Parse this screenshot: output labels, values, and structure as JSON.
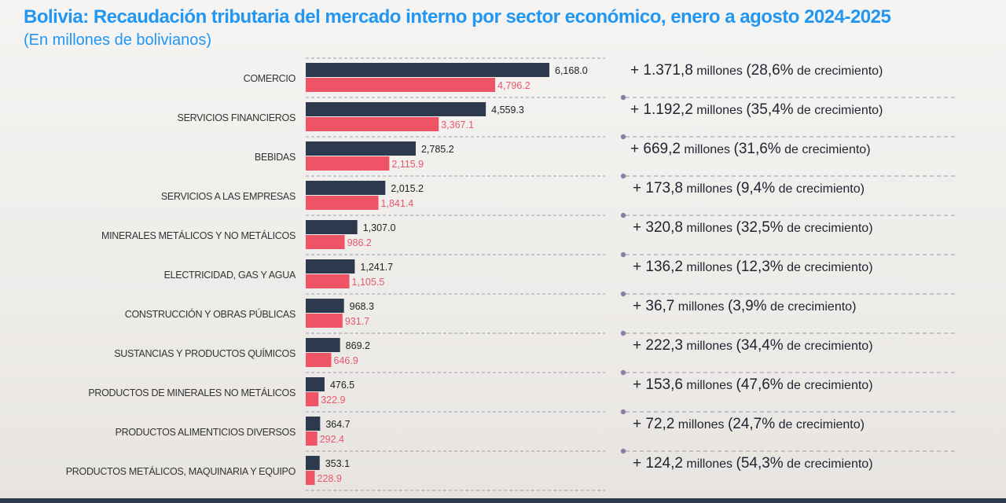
{
  "header": {
    "title": "Bolivia: Recaudación tributaria del mercado interno por sector económico, enero a agosto 2024-2025",
    "subtitle": "(En millones de bolivianos)"
  },
  "colors": {
    "series_2025": "#2d3a4d",
    "series_2024": "#ef5366",
    "label_2024": "#e9566b",
    "title": "#2196f3",
    "divider": "#8a8aa6",
    "dot": "#8a7fa8"
  },
  "chart_data": {
    "type": "bar",
    "orientation": "horizontal",
    "categories": [
      "COMERCIO",
      "SERVICIOS FINANCIEROS",
      "BEBIDAS",
      "SERVICIOS A LAS EMPRESAS",
      "MINERALES METÁLICOS Y NO METÁLICOS",
      "ELECTRICIDAD, GAS Y AGUA",
      "CONSTRUCCIÓN Y OBRAS PÚBLICAS",
      "SUSTANCIAS Y PRODUCTOS QUÍMICOS",
      "PRODUCTOS DE MINERALES NO METÁLICOS",
      "PRODUCTOS ALIMENTICIOS DIVERSOS",
      "PRODUCTOS METÁLICOS, MAQUINARIA Y EQUIPO"
    ],
    "series": [
      {
        "color": "#2d3a4d",
        "values": [
          6168.0,
          4559.3,
          2785.2,
          2015.2,
          1307.0,
          1241.7,
          968.3,
          869.2,
          476.5,
          364.7,
          353.1
        ],
        "labels": [
          "6,168.0",
          "4,559.3",
          "2,785.2",
          "2,015.2",
          "1,307.0",
          "1,241.7",
          "968.3",
          "869.2",
          "476.5",
          "364.7",
          "353.1"
        ]
      },
      {
        "color": "#ef5366",
        "values": [
          4796.2,
          3367.1,
          2115.9,
          1841.4,
          986.2,
          1105.5,
          931.7,
          646.9,
          322.9,
          292.4,
          228.9
        ],
        "labels": [
          "4,796.2",
          "3,367.1",
          "2,115.9",
          "1,841.4",
          "986.2",
          "1,105.5",
          "931.7",
          "646.9",
          "322.9",
          "292.4",
          "228.9"
        ]
      }
    ],
    "xlim": [
      0,
      6168.0
    ],
    "legend": "none",
    "grid": false
  },
  "growth": [
    {
      "amount": "+ 1.371,8",
      "unit": "millones",
      "pct": "(28,6%",
      "suffix": "de crecimiento)"
    },
    {
      "amount": "+ 1.192,2",
      "unit": "millones",
      "pct": "(35,4%",
      "suffix": "de crecimiento)"
    },
    {
      "amount": "+ 669,2",
      "unit": "millones",
      "pct": "(31,6%",
      "suffix": "de crecimiento)"
    },
    {
      "amount": "+ 173,8",
      "unit": "millones",
      "pct": "(9,4%",
      "suffix": "de crecimiento)"
    },
    {
      "amount": "+ 320,8",
      "unit": "millones",
      "pct": "(32,5%",
      "suffix": "de crecimiento)"
    },
    {
      "amount": "+ 136,2",
      "unit": "millones",
      "pct": "(12,3%",
      "suffix": "de crecimiento)"
    },
    {
      "amount": "+ 36,7",
      "unit": "millones",
      "pct": "(3,9%",
      "suffix": "de crecimiento)"
    },
    {
      "amount": "+ 222,3",
      "unit": "millones",
      "pct": "(34,4%",
      "suffix": "de crecimiento)"
    },
    {
      "amount": "+ 153,6",
      "unit": "millones",
      "pct": "(47,6%",
      "suffix": "de crecimiento)"
    },
    {
      "amount": "+ 72,2",
      "unit": "millones",
      "pct": "(24,7%",
      "suffix": "de crecimiento)"
    },
    {
      "amount": "+ 124,2",
      "unit": "millones",
      "pct": "(54,3%",
      "suffix": "de crecimiento)"
    }
  ]
}
